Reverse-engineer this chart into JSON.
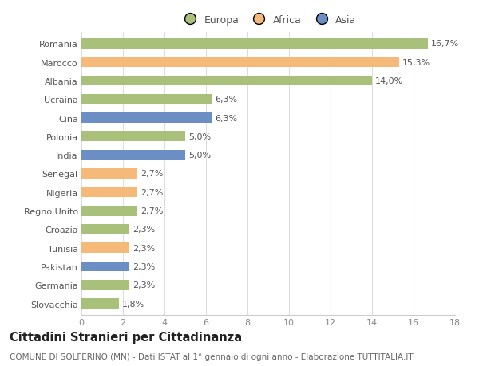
{
  "categories": [
    "Romania",
    "Marocco",
    "Albania",
    "Ucraina",
    "Cina",
    "Polonia",
    "India",
    "Senegal",
    "Nigeria",
    "Regno Unito",
    "Croazia",
    "Tunisia",
    "Pakistan",
    "Germania",
    "Slovacchia"
  ],
  "values": [
    16.7,
    15.3,
    14.0,
    6.3,
    6.3,
    5.0,
    5.0,
    2.7,
    2.7,
    2.7,
    2.3,
    2.3,
    2.3,
    2.3,
    1.8
  ],
  "labels": [
    "16,7%",
    "15,3%",
    "14,0%",
    "6,3%",
    "6,3%",
    "5,0%",
    "5,0%",
    "2,7%",
    "2,7%",
    "2,7%",
    "2,3%",
    "2,3%",
    "2,3%",
    "2,3%",
    "1,8%"
  ],
  "continents": [
    "Europa",
    "Africa",
    "Europa",
    "Europa",
    "Asia",
    "Europa",
    "Asia",
    "Africa",
    "Africa",
    "Europa",
    "Europa",
    "Africa",
    "Asia",
    "Europa",
    "Europa"
  ],
  "colors": {
    "Europa": "#a8c07a",
    "Africa": "#f5b97a",
    "Asia": "#6b8fc4"
  },
  "xlim": [
    0,
    18
  ],
  "xticks": [
    0,
    2,
    4,
    6,
    8,
    10,
    12,
    14,
    16,
    18
  ],
  "background_color": "#ffffff",
  "grid_color": "#dddddd",
  "title": "Cittadini Stranieri per Cittadinanza",
  "subtitle": "COMUNE DI SOLFERINO (MN) - Dati ISTAT al 1° gennaio di ogni anno - Elaborazione TUTTITALIA.IT",
  "bar_height": 0.55,
  "label_fontsize": 8,
  "tick_fontsize": 8,
  "title_fontsize": 10.5,
  "subtitle_fontsize": 7.5
}
